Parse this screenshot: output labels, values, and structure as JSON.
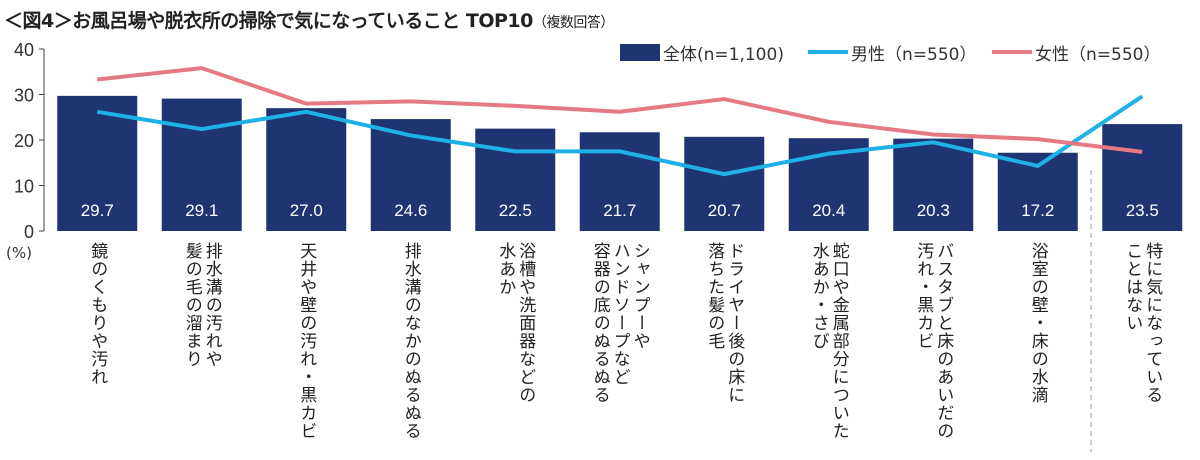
{
  "title": "＜図4＞お風呂場や脱衣所の掃除で気になっていること TOP10",
  "subtitle": "（複数回答）",
  "chart_data": {
    "type": "bar+line",
    "unit_label": "(%)",
    "ylim": [
      0,
      40
    ],
    "yticks": [
      0,
      10,
      20,
      30,
      40
    ],
    "grid": false,
    "legend_position": "top-right",
    "categories": [
      "鏡のくもりや汚れ",
      "排水溝の汚れや\n髪の毛の溜まり",
      "天井や壁の汚れ・黒カビ",
      "排水溝のなかのぬるぬる",
      "浴槽や洗面器などの\n水あか",
      "シャンプーや\nハンドソープなど\n容器の底のぬるぬる",
      "ドライヤー後の床に\n落ちた髪の毛",
      "蛇口や金属部分についた\n水あか・さび",
      "バスタブと床のあいだの\n汚れ・黒カビ",
      "浴室の壁・床の水滴",
      "特に気になっている\nことはない"
    ],
    "series": [
      {
        "name": "全体(n=1,100)",
        "type": "bar",
        "color": "#1f3473",
        "values": [
          29.7,
          29.1,
          27.0,
          24.6,
          22.5,
          21.7,
          20.7,
          20.4,
          20.3,
          17.2,
          23.5
        ],
        "labels": [
          "29.7",
          "29.1",
          "27.0",
          "24.6",
          "22.5",
          "21.7",
          "20.7",
          "20.4",
          "20.3",
          "17.2",
          "23.5"
        ]
      },
      {
        "name": "男性（n=550）",
        "type": "line",
        "color": "#1fb0e6",
        "values": [
          26.2,
          22.4,
          26.2,
          21.0,
          17.5,
          17.5,
          12.5,
          17.0,
          19.5,
          14.3,
          29.6
        ]
      },
      {
        "name": "女性（n=550）",
        "type": "line",
        "color": "#e57a85",
        "values": [
          33.3,
          35.8,
          28.0,
          28.5,
          27.5,
          26.2,
          29.0,
          24.0,
          21.2,
          20.2,
          17.4
        ]
      }
    ]
  }
}
